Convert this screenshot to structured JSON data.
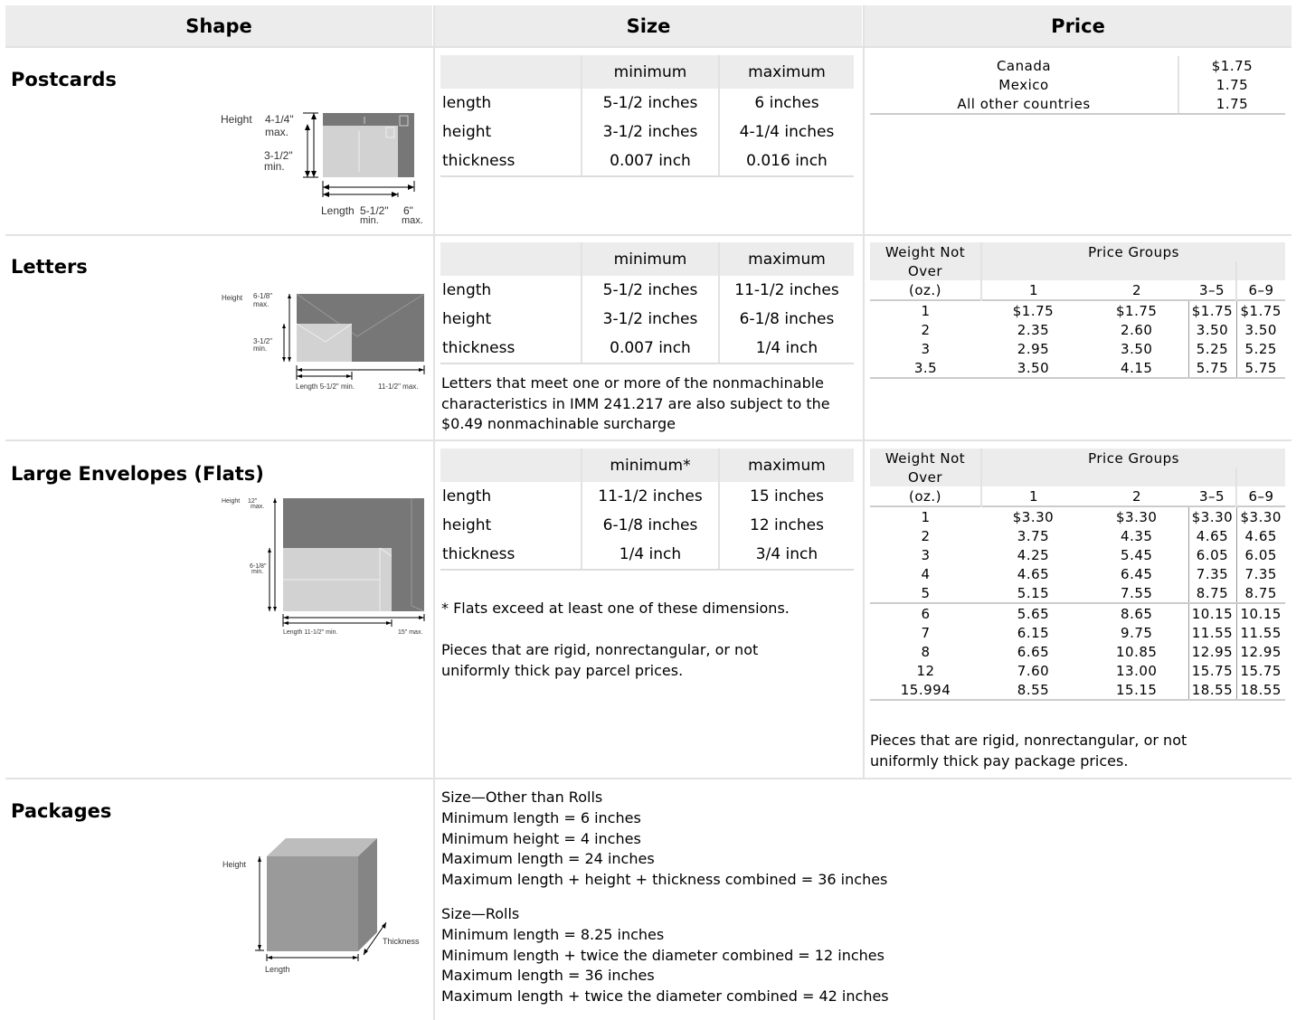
{
  "headers": {
    "shape": "Shape",
    "size": "Size",
    "price": "Price"
  },
  "size_cols": {
    "blank": "",
    "min": "minimum",
    "min_star": "minimum*",
    "max": "maximum"
  },
  "postcards": {
    "title": "Postcards",
    "diagram": {
      "height": "Height",
      "max_h": "4-1/4\"",
      "max_w": "max.",
      "min_h": "3-1/2\"",
      "min_w": "min.",
      "length": "Length",
      "min_l": "5-1/2\"",
      "min_l2": "min.",
      "max_l": "6\"",
      "max_l2": "max."
    },
    "rows": [
      [
        "length",
        "5-1/2 inches",
        "6 inches"
      ],
      [
        "height",
        "3-1/2 inches",
        "4-1/4 inches"
      ],
      [
        "thickness",
        "0.007 inch",
        "0.016 inch"
      ]
    ],
    "prices": [
      [
        "Canada",
        "$1.75"
      ],
      [
        "Mexico",
        "1.75"
      ],
      [
        "All other countries",
        "1.75"
      ]
    ]
  },
  "letters": {
    "title": "Letters",
    "diagram": {
      "height": "Height",
      "max_h": "6-1/8\"",
      "max_w": "max.",
      "min_h": "3-1/2\"",
      "min_w": "min.",
      "length": "Length  5-1/2\" min.",
      "max_l": "11-1/2\" max."
    },
    "rows": [
      [
        "length",
        "5-1/2 inches",
        "11-1/2 inches"
      ],
      [
        "height",
        "3-1/2 inches",
        "6-1/8 inches"
      ],
      [
        "thickness",
        "0.007 inch",
        "1/4 inch"
      ]
    ],
    "note": "Letters that meet one or more of the nonmachinable characteristics in IMM 241.217 are also subject to the $0.49 nonmachinable surcharge",
    "price_head": {
      "weight1": "Weight Not",
      "weight2": "Over",
      "weight3": "(oz.)",
      "groups": "Price Groups",
      "g1": "1",
      "g2": "2",
      "g3": "3–5",
      "g4": "6–9"
    },
    "prices": [
      [
        "1",
        "$1.75",
        "$1.75",
        "$1.75",
        "$1.75"
      ],
      [
        "2",
        "2.35",
        "2.60",
        "3.50",
        "3.50"
      ],
      [
        "3",
        "2.95",
        "3.50",
        "5.25",
        "5.25"
      ],
      [
        "3.5",
        "3.50",
        "4.15",
        "5.75",
        "5.75"
      ]
    ]
  },
  "flats": {
    "title": "Large Envelopes (Flats)",
    "diagram": {
      "height": "Height",
      "max_h": "12\"",
      "max_w": "max.",
      "min_h": "6-1/8\"",
      "min_w": "min.",
      "length": "Length  11-1/2\" min.",
      "max_l": "15\" max."
    },
    "rows": [
      [
        "length",
        "11-1/2 inches",
        "15 inches"
      ],
      [
        "height",
        "6-1/8 inches",
        "12 inches"
      ],
      [
        "thickness",
        "1/4 inch",
        "3/4 inch"
      ]
    ],
    "note1": "* Flats exceed at least one of these dimensions.",
    "note2": "Pieces that are rigid, nonrectangular, or not uniformly thick pay parcel prices.",
    "price_head": {
      "weight1": "Weight Not",
      "weight2": "Over",
      "weight3": "(oz.)",
      "groups": "Price Groups",
      "g1": "1",
      "g2": "2",
      "g3": "3–5",
      "g4": "6–9"
    },
    "prices_a": [
      [
        "1",
        "$3.30",
        "$3.30",
        "$3.30",
        "$3.30"
      ],
      [
        "2",
        "3.75",
        "4.35",
        "4.65",
        "4.65"
      ],
      [
        "3",
        "4.25",
        "5.45",
        "6.05",
        "6.05"
      ],
      [
        "4",
        "4.65",
        "6.45",
        "7.35",
        "7.35"
      ],
      [
        "5",
        "5.15",
        "7.55",
        "8.75",
        "8.75"
      ]
    ],
    "prices_b": [
      [
        "6",
        "5.65",
        "8.65",
        "10.15",
        "10.15"
      ],
      [
        "7",
        "6.15",
        "9.75",
        "11.55",
        "11.55"
      ],
      [
        "8",
        "6.65",
        "10.85",
        "12.95",
        "12.95"
      ],
      [
        "12",
        "7.60",
        "13.00",
        "15.75",
        "15.75"
      ],
      [
        "15.994",
        "8.55",
        "15.15",
        "18.55",
        "18.55"
      ]
    ],
    "price_note": "Pieces that are rigid, nonrectangular, or not uniformly thick pay package prices."
  },
  "packages": {
    "title": "Packages",
    "diagram": {
      "height": "Height",
      "thickness": "Thickness",
      "length": "Length"
    },
    "other_title": "Size—Other than Rolls",
    "other": [
      "Minimum length = 6 inches",
      "Minimum height = 4 inches",
      "Maximum length = 24 inches",
      "Maximum length + height + thickness combined = 36 inches"
    ],
    "rolls_title": "Size—Rolls",
    "rolls": [
      "Minimum length = 8.25 inches",
      "Minimum length + twice the diameter combined = 12 inches",
      "Maximum length = 36 inches",
      "Maximum length + twice the diameter combined = 42 inches"
    ]
  }
}
